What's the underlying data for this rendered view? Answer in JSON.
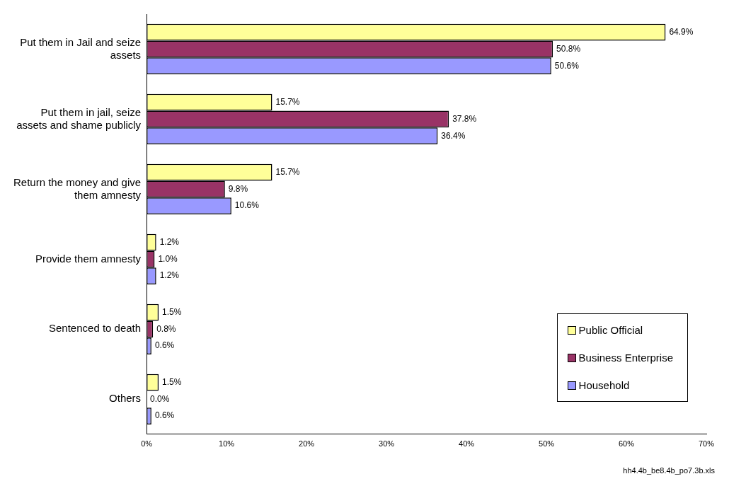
{
  "chart_data": {
    "type": "bar",
    "orientation": "horizontal",
    "categories": [
      "Put them in Jail and seize assets",
      "Put them in jail, seize assets and shame publicly",
      "Return the money and give them amnesty",
      "Provide them amnesty",
      "Sentenced to death",
      "Others"
    ],
    "series": [
      {
        "name": "Public Official",
        "color": "#ffff99",
        "values": [
          64.9,
          15.7,
          15.7,
          1.2,
          1.5,
          1.5
        ],
        "value_labels": [
          "64.9%",
          "15.7%",
          "15.7%",
          "1.2%",
          "1.5%",
          "1.5%"
        ]
      },
      {
        "name": "Business Enterprise",
        "color": "#993366",
        "values": [
          50.8,
          37.8,
          9.8,
          1.0,
          0.8,
          0.0
        ],
        "value_labels": [
          "50.8%",
          "37.8%",
          "9.8%",
          "1.0%",
          "0.8%",
          "0.0%"
        ]
      },
      {
        "name": "Household",
        "color": "#9999ff",
        "values": [
          50.6,
          36.4,
          10.6,
          1.2,
          0.6,
          0.6
        ],
        "value_labels": [
          "50.6%",
          "36.4%",
          "10.6%",
          "1.2%",
          "0.6%",
          "0.6%"
        ]
      }
    ],
    "xlim": [
      0,
      70
    ],
    "xticks": [
      {
        "value": 0,
        "label": "0%"
      },
      {
        "value": 10,
        "label": "10%"
      },
      {
        "value": 20,
        "label": "20%"
      },
      {
        "value": 30,
        "label": "30%"
      },
      {
        "value": 40,
        "label": "40%"
      },
      {
        "value": 50,
        "label": "50%"
      },
      {
        "value": 60,
        "label": "60%"
      },
      {
        "value": 70,
        "label": "70%"
      }
    ],
    "grid": false,
    "legend": "bottom right",
    "annotations": [
      "hh4.4b_be8.4b_po7.3b.xls"
    ]
  }
}
